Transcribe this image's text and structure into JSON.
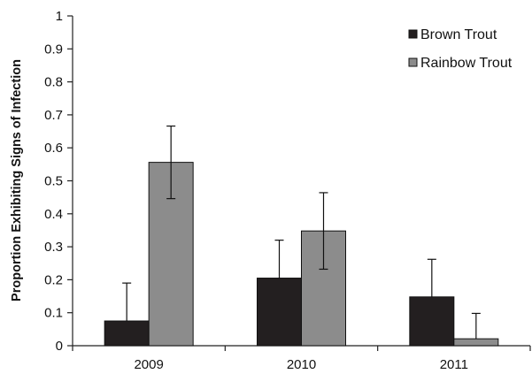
{
  "chart_data": {
    "type": "bar",
    "title": "",
    "xlabel": "",
    "ylabel": "Proportion Exhibiting Signs of Infection",
    "ylim": [
      0,
      1
    ],
    "yticks": [
      "0",
      "0.1",
      "0.2",
      "0.3",
      "0.4",
      "0.5",
      "0.6",
      "0.7",
      "0.8",
      "0.9",
      "1"
    ],
    "categories": [
      "2009",
      "2010",
      "2011"
    ],
    "series": [
      {
        "name": "Brown Trout",
        "color": "#231f20",
        "values": [
          0.075,
          0.205,
          0.148
        ],
        "error_upper": [
          0.19,
          0.32,
          0.262
        ]
      },
      {
        "name": "Rainbow Trout",
        "color": "#8c8c8c",
        "values": [
          0.556,
          0.348,
          0.021
        ],
        "error_upper": [
          0.666,
          0.464,
          0.098
        ],
        "error_lower": [
          0.446,
          0.232
        ]
      }
    ],
    "grid": false,
    "legend_position": "top-right"
  }
}
